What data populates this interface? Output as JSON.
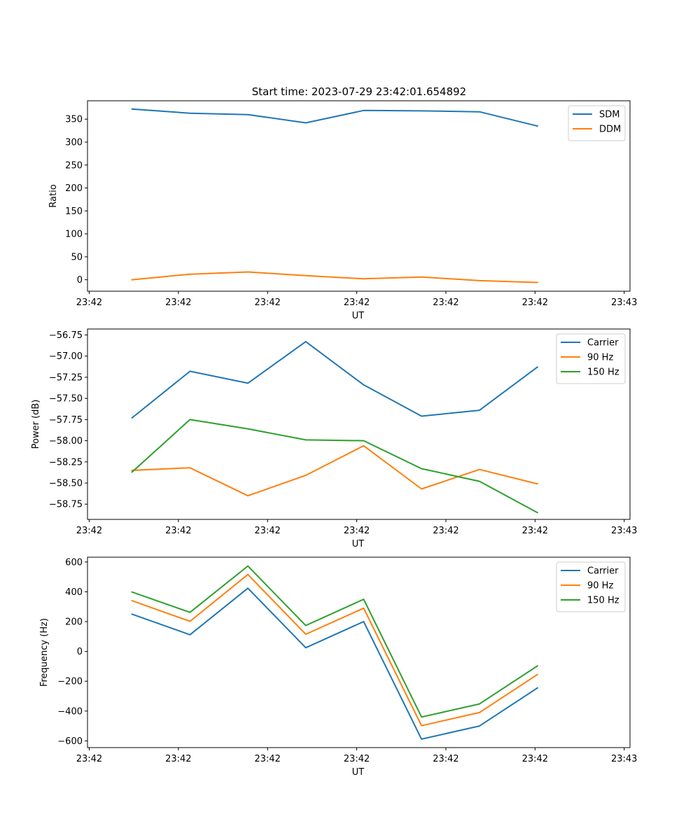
{
  "chart_data": [
    {
      "type": "line",
      "title": "Start time: 2023-07-29 23:42:01.654892",
      "xlabel": "UT",
      "ylabel": "Ratio",
      "x_tick_labels": [
        "23:42",
        "23:42",
        "23:42",
        "23:42",
        "23:42",
        "23:42",
        "23:43"
      ],
      "x_index": [
        0,
        1,
        2,
        3,
        4,
        5,
        6,
        7
      ],
      "ylim": [
        -25,
        390
      ],
      "y_ticks": [
        0,
        50,
        100,
        150,
        200,
        250,
        300,
        350
      ],
      "y_tick_labels": [
        "0",
        "50",
        "100",
        "150",
        "200",
        "250",
        "300",
        "350"
      ],
      "legend_position": "upper-right",
      "series": [
        {
          "name": "SDM",
          "color": "#1f77b4",
          "values": [
            372,
            363,
            360,
            342,
            369,
            368,
            366,
            335
          ]
        },
        {
          "name": "DDM",
          "color": "#ff7f0e",
          "values": [
            0,
            12,
            17,
            9,
            2,
            6,
            -2,
            -6
          ]
        }
      ]
    },
    {
      "type": "line",
      "title": "",
      "xlabel": "UT",
      "ylabel": "Power (dB)",
      "x_tick_labels": [
        "23:42",
        "23:42",
        "23:42",
        "23:42",
        "23:42",
        "23:42",
        "23:43"
      ],
      "x_index": [
        0,
        1,
        2,
        3,
        4,
        5,
        6,
        7
      ],
      "ylim": [
        -58.93,
        -56.68
      ],
      "y_ticks": [
        -58.75,
        -58.5,
        -58.25,
        -58.0,
        -57.75,
        -57.5,
        -57.25,
        -57.0,
        -56.75
      ],
      "y_tick_labels": [
        "−58.75",
        "−58.50",
        "−58.25",
        "−58.00",
        "−57.75",
        "−57.50",
        "−57.25",
        "−57.00",
        "−56.75"
      ],
      "legend_position": "upper-right",
      "series": [
        {
          "name": "Carrier",
          "color": "#1f77b4",
          "values": [
            -57.73,
            -57.18,
            -57.32,
            -56.83,
            -57.34,
            -57.71,
            -57.64,
            -57.13
          ]
        },
        {
          "name": "90 Hz",
          "color": "#ff7f0e",
          "values": [
            -58.35,
            -58.32,
            -58.65,
            -58.41,
            -58.06,
            -58.57,
            -58.34,
            -58.51
          ]
        },
        {
          "name": "150 Hz",
          "color": "#2ca02c",
          "values": [
            -58.37,
            -57.75,
            -57.86,
            -57.99,
            -58.0,
            -58.33,
            -58.48,
            -58.85
          ]
        }
      ]
    },
    {
      "type": "line",
      "title": "",
      "xlabel": "UT",
      "ylabel": "Frequency (Hz)",
      "x_tick_labels": [
        "23:42",
        "23:42",
        "23:42",
        "23:42",
        "23:42",
        "23:42",
        "23:43"
      ],
      "x_index": [
        0,
        1,
        2,
        3,
        4,
        5,
        6,
        7
      ],
      "ylim": [
        -645,
        632
      ],
      "y_ticks": [
        -600,
        -400,
        -200,
        0,
        200,
        400,
        600
      ],
      "y_tick_labels": [
        "−600",
        "−400",
        "−200",
        "0",
        "200",
        "400",
        "600"
      ],
      "legend_position": "upper-right",
      "series": [
        {
          "name": "Carrier",
          "color": "#1f77b4",
          "values": [
            250,
            112,
            424,
            25,
            200,
            -588,
            -500,
            -245
          ]
        },
        {
          "name": "90 Hz",
          "color": "#ff7f0e",
          "values": [
            340,
            202,
            516,
            115,
            290,
            -498,
            -410,
            -155
          ]
        },
        {
          "name": "150 Hz",
          "color": "#2ca02c",
          "values": [
            398,
            262,
            573,
            174,
            350,
            -440,
            -352,
            -97
          ]
        }
      ]
    }
  ]
}
